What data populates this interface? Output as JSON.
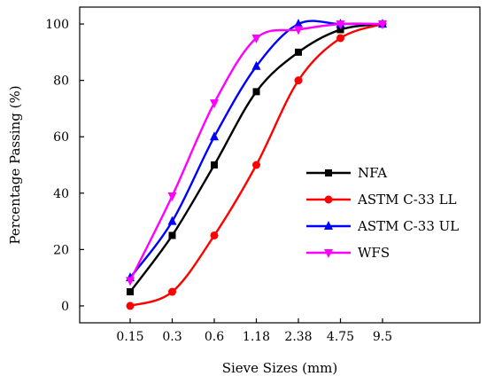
{
  "chart_data": {
    "type": "line",
    "title": "",
    "xlabel": "Sieve Sizes (mm)",
    "ylabel": "Percentage Passing (%)",
    "categories": [
      "0.15",
      "0.3",
      "0.6",
      "1.18",
      "2.38",
      "4.75",
      "9.5"
    ],
    "yticks": [
      0,
      20,
      40,
      60,
      80,
      100
    ],
    "ylim": [
      -6,
      106
    ],
    "grid": false,
    "legend_position": "right",
    "series": [
      {
        "name": "NFA",
        "color": "#000000",
        "marker": "square",
        "values": [
          5,
          25,
          50,
          76,
          90,
          98,
          100
        ]
      },
      {
        "name": "ASTM C-33 LL",
        "color": "#ff0000",
        "marker": "circle",
        "values": [
          0,
          5,
          25,
          50,
          80,
          95,
          100
        ]
      },
      {
        "name": "ASTM C-33 UL",
        "color": "#0000ff",
        "marker": "triangle-up",
        "values": [
          10,
          30,
          60,
          85,
          100,
          100,
          100
        ]
      },
      {
        "name": "WFS",
        "color": "#ff00ff",
        "marker": "triangle-down",
        "values": [
          9,
          39,
          72,
          95,
          98,
          100,
          100
        ]
      }
    ]
  }
}
